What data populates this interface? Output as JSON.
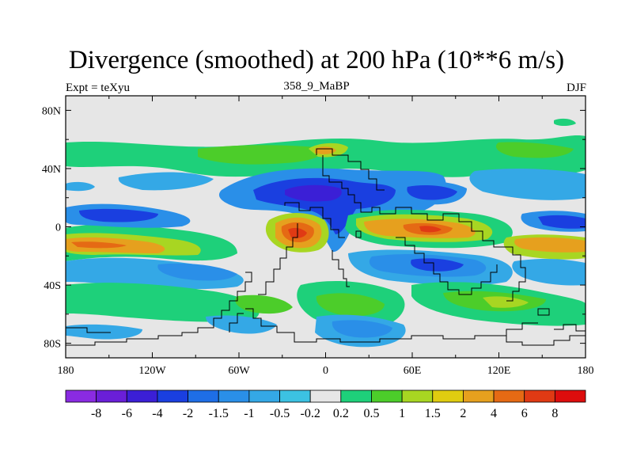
{
  "title": "Divergence (smoothed) at 200 hPa (10**6 m/s)",
  "left_label": "Expt = teXyu",
  "center_label": "358_9_MaBP",
  "right_label": "DJF",
  "map": {
    "lon_ticks": [
      "180",
      "120W",
      "60W",
      "0",
      "60E",
      "120E",
      "180"
    ],
    "lat_ticks": [
      "80N",
      "40N",
      "0",
      "40S",
      "80S"
    ],
    "lon_range": [
      -180,
      180
    ],
    "lat_range": [
      -90,
      90
    ],
    "background_color": "#e6e6e6"
  },
  "colorbar": {
    "labels": [
      "-8",
      "-6",
      "-4",
      "-2",
      "-1.5",
      "-1",
      "-0.5",
      "-0.2",
      "0.2",
      "0.5",
      "1",
      "1.5",
      "2",
      "4",
      "6",
      "8"
    ],
    "colors": [
      "#8a2be2",
      "#6a1fd8",
      "#3b1fd6",
      "#1a3fe0",
      "#1e6ee6",
      "#2a8fe8",
      "#34a8e6",
      "#3cc2e2",
      "#e6e6e6",
      "#1ed07a",
      "#4ccd2a",
      "#a8d622",
      "#e0cc10",
      "#e6a01e",
      "#e56a14",
      "#e03a14",
      "#dd0d0d"
    ]
  }
}
